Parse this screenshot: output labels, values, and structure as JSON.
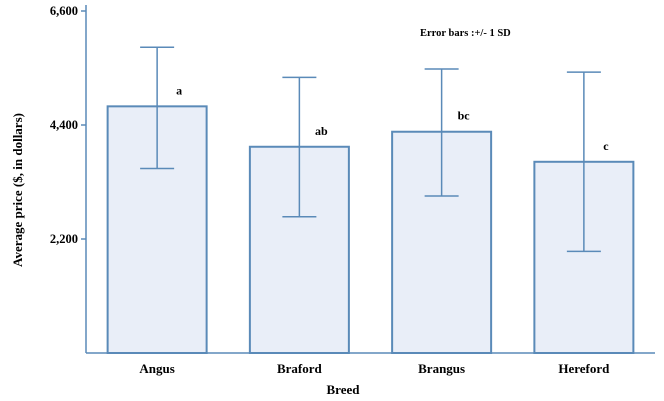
{
  "chart_data": {
    "type": "bar",
    "categories": [
      "Angus",
      "Braford",
      "Brangus",
      "Hereford"
    ],
    "values": [
      4760,
      3980,
      4270,
      3690
    ],
    "error_bars": {
      "type": "+/- 1 SD",
      "lower": [
        3560,
        2630,
        3030,
        1960
      ],
      "upper": [
        5900,
        5320,
        5480,
        5420
      ]
    },
    "significance_letters": [
      "a",
      "ab",
      "bc",
      "c"
    ],
    "xlabel": "Breed",
    "ylabel": "Average price ($, in dollars)",
    "ylim": [
      0,
      6600
    ],
    "yticks": [
      2200,
      4400,
      6600
    ],
    "ytick_labels": [
      "2,200",
      "4,400",
      "6,600"
    ],
    "annotation": "Error  bars :+/- 1 SD",
    "grid": false,
    "colors": {
      "bar_fill": "#e9eef8",
      "bar_stroke": "#5a8ab8",
      "error_bar": "#5a8ab8",
      "axis": "#5a8ab8"
    }
  }
}
